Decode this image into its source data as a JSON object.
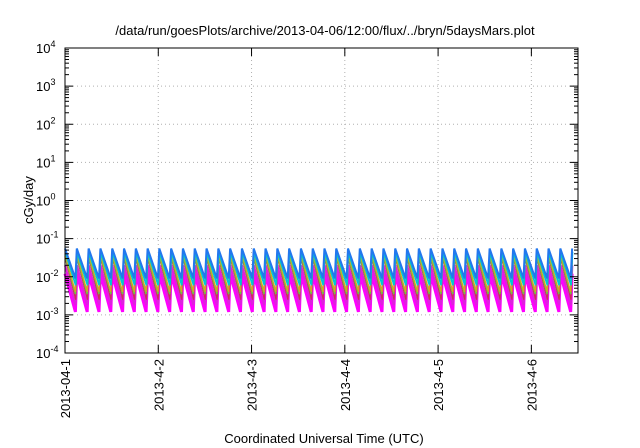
{
  "chart_data": {
    "type": "line",
    "title": "/data/run/goesPlots/archive/2013-04-06/12:00/flux/../bryn/5daysMars.plot",
    "xlabel": "Coordinated Universal Time (UTC)",
    "ylabel": "cGy/day",
    "yscale": "log",
    "ylim_exponents": [
      -4,
      4
    ],
    "y_tick_base": "10",
    "y_tick_exponents": [
      "-4",
      "-3",
      "-2",
      "-1",
      "0",
      "1",
      "2",
      "3",
      "4"
    ],
    "x_tick_labels": [
      "2013-04-1",
      "2013-4-2",
      "2013-4-3",
      "2013-4-4",
      "2013-4-5",
      "2013-4-6"
    ],
    "xlim_days": [
      0,
      5.5
    ],
    "grid": true,
    "series_colors": [
      "#ff00ff",
      "#dd22dd",
      "#cc3355",
      "#66cc44",
      "#e0a020",
      "#00c8d0",
      "#2277ee"
    ],
    "oscillation_cycles": 44,
    "series_peak_cGy_per_day": [
      0.012,
      0.02,
      0.03,
      0.035,
      0.04,
      0.045,
      0.055
    ],
    "series_trough_cGy_per_day": [
      0.0012,
      0.0018,
      0.0025,
      0.0035,
      0.004,
      0.006,
      0.009
    ]
  }
}
